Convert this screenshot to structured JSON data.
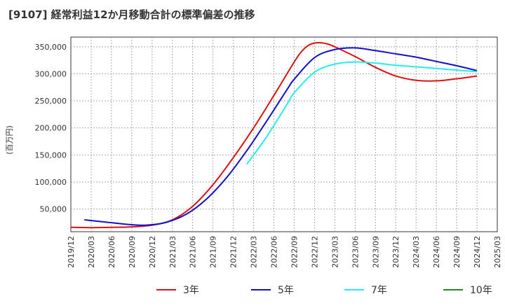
{
  "chart_data": {
    "type": "line",
    "title": "[9107]  経常利益12か月移動合計の標準偏差の推移",
    "ylabel": "(百万円)",
    "xlabel": "",
    "ylim": [
      8000,
      368000
    ],
    "x_ticks": [
      "2019/12",
      "2020/03",
      "2020/06",
      "2020/09",
      "2020/12",
      "2021/03",
      "2021/06",
      "2021/09",
      "2021/12",
      "2022/03",
      "2022/06",
      "2022/09",
      "2022/12",
      "2023/03",
      "2023/06",
      "2023/09",
      "2023/12",
      "2024/03",
      "2024/06",
      "2024/09",
      "2024/12",
      "2025/03"
    ],
    "y_ticks": [
      50000,
      100000,
      150000,
      200000,
      250000,
      300000,
      350000
    ],
    "y_tick_labels": [
      "50,000",
      "100,000",
      "150,000",
      "200,000",
      "250,000",
      "300,000",
      "350,000"
    ],
    "grid": true,
    "legend_position": "bottom",
    "series": [
      {
        "name": "3年",
        "color": "#dd1111",
        "x": [
          "2019/12",
          "2020/03",
          "2020/06",
          "2020/09",
          "2020/12",
          "2021/03",
          "2021/06",
          "2021/09",
          "2021/12",
          "2022/03",
          "2022/06",
          "2022/09",
          "2022/10",
          "2022/11",
          "2022/12",
          "2023/01",
          "2023/02",
          "2023/03",
          "2023/06",
          "2023/09",
          "2023/12",
          "2024/03",
          "2024/06",
          "2024/09",
          "2024/12"
        ],
        "values": [
          16000,
          15500,
          16000,
          17000,
          20000,
          30000,
          55000,
          95000,
          145000,
          200000,
          260000,
          322000,
          340000,
          352000,
          357000,
          357500,
          355000,
          350000,
          332000,
          312000,
          296000,
          288000,
          287000,
          291000,
          296000
        ]
      },
      {
        "name": "5年",
        "color": "#1111cc",
        "x": [
          "2020/02",
          "2020/05",
          "2020/08",
          "2020/11",
          "2021/02",
          "2021/05",
          "2021/08",
          "2021/11",
          "2022/02",
          "2022/05",
          "2022/08",
          "2022/09",
          "2022/12",
          "2023/03",
          "2023/06",
          "2023/09",
          "2023/12",
          "2024/03",
          "2024/06",
          "2024/09",
          "2024/12"
        ],
        "values": [
          30000,
          26000,
          22000,
          20000,
          25000,
          40000,
          68000,
          108000,
          158000,
          214000,
          272000,
          290000,
          330000,
          345000,
          348000,
          343000,
          337000,
          331000,
          323000,
          315000,
          306000
        ]
      },
      {
        "name": "7年",
        "color": "#22eeee",
        "x": [
          "2022/02",
          "2022/05",
          "2022/08",
          "2022/09",
          "2022/12",
          "2023/03",
          "2023/06",
          "2023/09",
          "2023/12",
          "2024/03",
          "2024/06",
          "2024/09",
          "2024/12"
        ],
        "values": [
          133000,
          185000,
          245000,
          265000,
          303000,
          318000,
          322000,
          320000,
          316000,
          313000,
          310000,
          307000,
          304000
        ]
      },
      {
        "name": "10年",
        "color": "#228822",
        "x": [],
        "values": []
      }
    ]
  }
}
